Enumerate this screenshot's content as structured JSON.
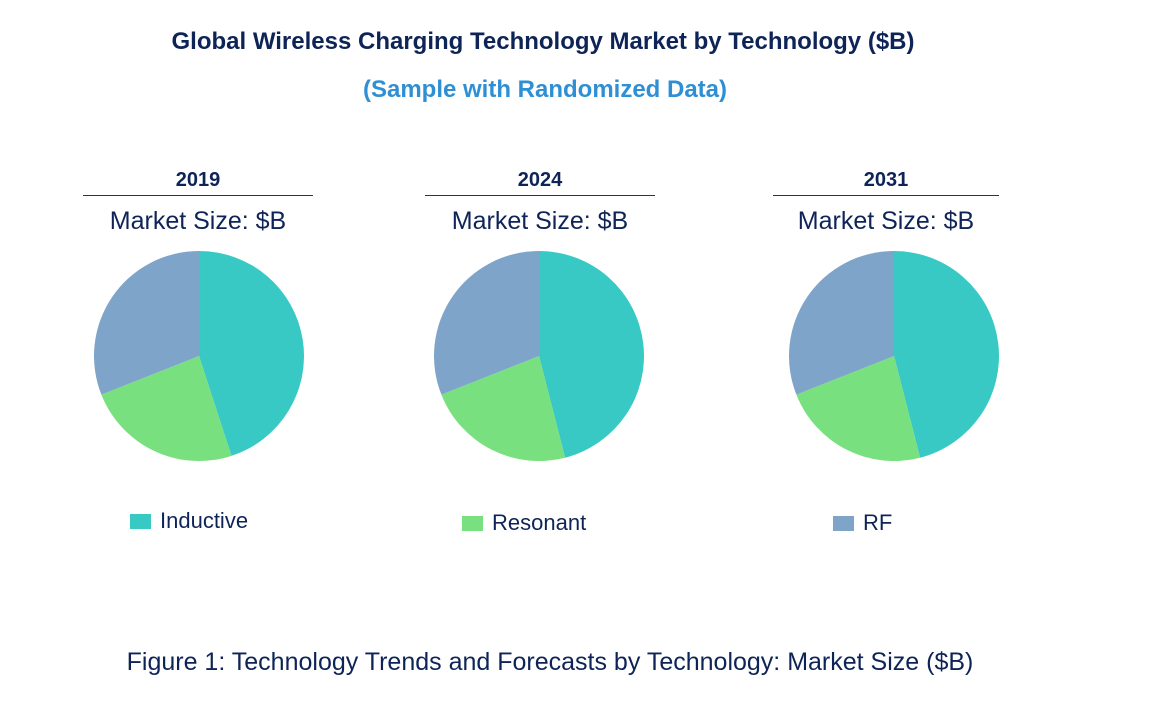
{
  "chart_data": {
    "type": "pie",
    "title": "Global Wireless Charging Technology Market by Technology ($B)",
    "subtitle": "(Sample with Randomized Data)",
    "categories": [
      "Inductive",
      "Resonant",
      "RF"
    ],
    "colors": [
      "#38c9c5",
      "#79e07f",
      "#7ea4c9"
    ],
    "panels": [
      {
        "year": "2019",
        "label": "Market Size: $B",
        "values": [
          45,
          24,
          31
        ]
      },
      {
        "year": "2024",
        "label": "Market Size: $B",
        "values": [
          46,
          23,
          31
        ]
      },
      {
        "year": "2031",
        "label": "Market Size: $B",
        "values": [
          46,
          23,
          31
        ]
      }
    ],
    "caption": "Figure 1: Technology Trends and Forecasts by Technology: Market Size ($B)"
  }
}
